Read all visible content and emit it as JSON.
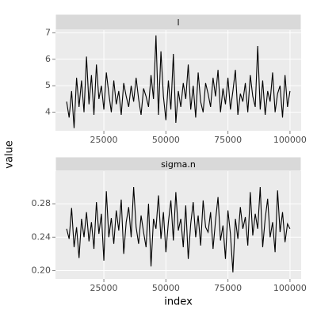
{
  "chart_data": {
    "type": "line",
    "xlabel": "index",
    "ylabel": "value",
    "color": "#000000",
    "grid": true,
    "panels": [
      {
        "title": "l",
        "x": [
          10000,
          11000,
          12000,
          13000,
          14000,
          15000,
          16000,
          17000,
          18000,
          19000,
          20000,
          21000,
          22000,
          23000,
          24000,
          25000,
          26000,
          27000,
          28000,
          29000,
          30000,
          31000,
          32000,
          33000,
          34000,
          35000,
          36000,
          37000,
          38000,
          39000,
          40000,
          41000,
          42000,
          43000,
          44000,
          45000,
          46000,
          47000,
          48000,
          49000,
          50000,
          51000,
          52000,
          53000,
          54000,
          55000,
          56000,
          57000,
          58000,
          59000,
          60000,
          61000,
          62000,
          63000,
          64000,
          65000,
          66000,
          67000,
          68000,
          69000,
          70000,
          71000,
          72000,
          73000,
          74000,
          75000,
          76000,
          77000,
          78000,
          79000,
          80000,
          81000,
          82000,
          83000,
          84000,
          85000,
          86000,
          87000,
          88000,
          89000,
          90000,
          91000,
          92000,
          93000,
          94000,
          95000,
          96000,
          97000,
          98000,
          99000,
          100000
        ],
        "values": [
          4.4,
          3.8,
          4.8,
          3.4,
          5.3,
          4.2,
          5.2,
          4.0,
          6.1,
          4.3,
          5.4,
          3.9,
          5.8,
          4.5,
          5.0,
          4.1,
          5.5,
          4.7,
          4.0,
          5.2,
          4.3,
          4.8,
          3.9,
          5.1,
          4.6,
          4.2,
          5.0,
          4.4,
          5.3,
          4.5,
          3.9,
          4.9,
          4.6,
          4.2,
          5.4,
          4.5,
          6.9,
          3.9,
          6.3,
          4.6,
          3.7,
          5.2,
          4.1,
          6.2,
          3.6,
          4.8,
          4.2,
          5.1,
          4.5,
          5.8,
          4.1,
          5.0,
          3.8,
          5.5,
          4.4,
          4.0,
          5.1,
          4.7,
          4.2,
          5.3,
          4.6,
          5.6,
          4.0,
          4.9,
          4.3,
          5.3,
          4.1,
          4.8,
          5.6,
          3.9,
          4.7,
          4.4,
          5.1,
          4.0,
          5.4,
          4.6,
          4.2,
          6.5,
          4.1,
          5.2,
          3.9,
          4.8,
          4.4,
          5.5,
          4.0,
          4.7,
          5.0,
          3.8,
          5.4,
          4.2,
          4.8
        ],
        "xlim": [
          5500,
          104500
        ],
        "ylim": [
          3.3,
          7.1
        ],
        "xticks": [
          25000,
          50000,
          75000,
          100000
        ],
        "yticks": [
          4,
          5,
          6,
          7
        ]
      },
      {
        "title": "sigma.n",
        "x": [
          10000,
          11000,
          12000,
          13000,
          14000,
          15000,
          16000,
          17000,
          18000,
          19000,
          20000,
          21000,
          22000,
          23000,
          24000,
          25000,
          26000,
          27000,
          28000,
          29000,
          30000,
          31000,
          32000,
          33000,
          34000,
          35000,
          36000,
          37000,
          38000,
          39000,
          40000,
          41000,
          42000,
          43000,
          44000,
          45000,
          46000,
          47000,
          48000,
          49000,
          50000,
          51000,
          52000,
          53000,
          54000,
          55000,
          56000,
          57000,
          58000,
          59000,
          60000,
          61000,
          62000,
          63000,
          64000,
          65000,
          66000,
          67000,
          68000,
          69000,
          70000,
          71000,
          72000,
          73000,
          74000,
          75000,
          76000,
          77000,
          78000,
          79000,
          80000,
          81000,
          82000,
          83000,
          84000,
          85000,
          86000,
          87000,
          88000,
          89000,
          90000,
          91000,
          92000,
          93000,
          94000,
          95000,
          96000,
          97000,
          98000,
          99000,
          100000
        ],
        "values": [
          0.25,
          0.238,
          0.275,
          0.228,
          0.252,
          0.215,
          0.262,
          0.24,
          0.27,
          0.235,
          0.258,
          0.226,
          0.282,
          0.244,
          0.268,
          0.212,
          0.295,
          0.24,
          0.263,
          0.232,
          0.272,
          0.248,
          0.285,
          0.22,
          0.258,
          0.276,
          0.24,
          0.3,
          0.252,
          0.232,
          0.266,
          0.246,
          0.228,
          0.28,
          0.205,
          0.262,
          0.25,
          0.29,
          0.238,
          0.27,
          0.222,
          0.258,
          0.284,
          0.236,
          0.294,
          0.248,
          0.262,
          0.228,
          0.278,
          0.214,
          0.256,
          0.282,
          0.24,
          0.266,
          0.23,
          0.284,
          0.252,
          0.246,
          0.27,
          0.226,
          0.26,
          0.288,
          0.236,
          0.254,
          0.214,
          0.272,
          0.244,
          0.198,
          0.262,
          0.238,
          0.276,
          0.25,
          0.264,
          0.23,
          0.294,
          0.242,
          0.268,
          0.25,
          0.3,
          0.228,
          0.262,
          0.286,
          0.24,
          0.258,
          0.222,
          0.296,
          0.246,
          0.27,
          0.234,
          0.256,
          0.25
        ],
        "xlim": [
          5500,
          104500
        ],
        "ylim": [
          0.19,
          0.319
        ],
        "xticks": [
          25000,
          50000,
          75000,
          100000
        ],
        "yticks": [
          {
            "value": 0.2,
            "label": "0.20"
          },
          0.24,
          0.28
        ]
      }
    ]
  }
}
